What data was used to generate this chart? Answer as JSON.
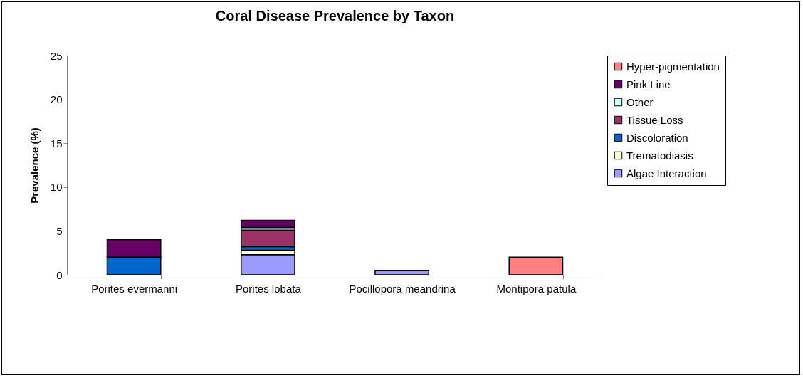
{
  "chart_data": {
    "type": "bar",
    "title": "Coral Disease Prevalence by Taxon",
    "ylabel": "Prevalence (%)",
    "categories": [
      "Porites evermanni",
      "Porites lobata",
      "Pocillopora meandrina",
      "Montipora patula"
    ],
    "stacked": true,
    "ylim": [
      0,
      25
    ],
    "yticks": [
      0,
      5,
      10,
      15,
      20,
      25
    ],
    "grid": false,
    "legend": "right",
    "series": [
      {
        "name": "Algae Interaction",
        "color": "#9999ff",
        "values": [
          null,
          2.3,
          0.5,
          null
        ]
      },
      {
        "name": "Trematodiasis",
        "color": "#ffffcc",
        "values": [
          null,
          0.5,
          null,
          null
        ]
      },
      {
        "name": "Discoloration",
        "color": "#0066cc",
        "values": [
          2.0,
          0.4,
          null,
          null
        ]
      },
      {
        "name": "Tissue Loss",
        "color": "#993366",
        "values": [
          null,
          1.9,
          null,
          null
        ]
      },
      {
        "name": "Other",
        "color": "#ccffff",
        "values": [
          null,
          0.3,
          null,
          null
        ]
      },
      {
        "name": "Pink Line",
        "color": "#660066",
        "values": [
          2.0,
          0.8,
          null,
          null
        ]
      },
      {
        "name": "Hyper-pigmentation",
        "color": "#ff8080",
        "values": [
          null,
          null,
          null,
          2.0
        ]
      }
    ]
  }
}
